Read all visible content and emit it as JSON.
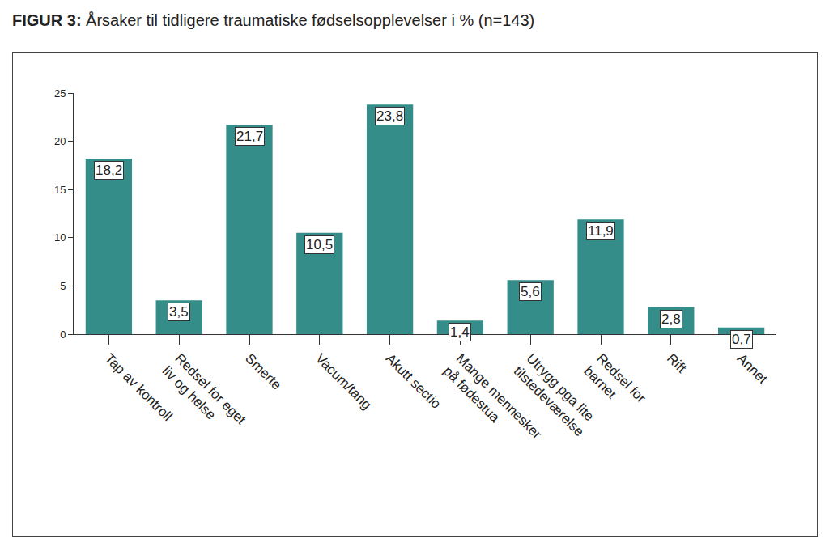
{
  "chart_data": {
    "type": "bar",
    "title": "FIGUR 3: Årsaker til tidligere traumatiske fødselsopplevelser i % (n=143)",
    "categories": [
      "Tap av kontroll",
      "Redsel for eget liv og helse",
      "Smerte",
      "Vacum/tang",
      "Akutt sectio",
      "Mange mennesker på fødestua",
      "Utrygg pga lite tilstedeværelse",
      "Redsel for barnet",
      "Rift",
      "Annet"
    ],
    "values": [
      18.2,
      3.5,
      21.7,
      10.5,
      23.8,
      1.4,
      5.6,
      11.9,
      2.8,
      0.7
    ],
    "value_labels": [
      "18,2",
      "3,5",
      "21,7",
      "10,5",
      "23,8",
      "1,4",
      "5,6",
      "11,9",
      "2,8",
      "0,7"
    ],
    "data_labels": true,
    "color": "#348d88",
    "ylim": [
      0,
      25
    ],
    "yticks": [
      0,
      5,
      10,
      15,
      20,
      25
    ],
    "grid": false
  }
}
